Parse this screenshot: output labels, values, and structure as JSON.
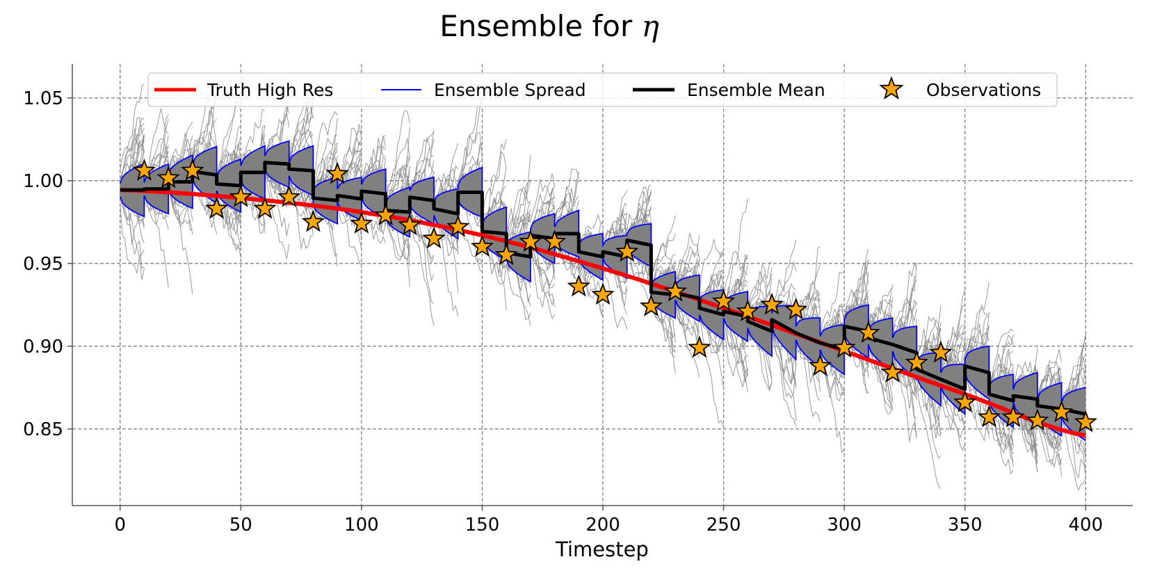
{
  "chart_data": {
    "type": "line",
    "title": "Ensemble for η",
    "title_prefix": "Ensemble for ",
    "title_symbol": "η",
    "xlabel": "Timestep",
    "ylabel": "",
    "xlim": [
      -19.8,
      419.5
    ],
    "ylim": [
      0.8037,
      1.0705
    ],
    "xticks": [
      0,
      50,
      100,
      150,
      200,
      250,
      300,
      350,
      400
    ],
    "yticks": [
      0.85,
      0.9,
      0.95,
      1.0,
      1.05
    ],
    "xtick_labels": [
      "0",
      "50",
      "100",
      "150",
      "200",
      "250",
      "300",
      "350",
      "400"
    ],
    "ytick_labels": [
      "0.85",
      "0.90",
      "0.95",
      "1.00",
      "1.05"
    ],
    "grid": true,
    "legend_placement": "top-center",
    "legend": [
      {
        "label": "Truth High Res",
        "color": "#ff0000",
        "kind": "thick-line"
      },
      {
        "label": "Ensemble Spread",
        "color": "#0000ff",
        "kind": "thin-line"
      },
      {
        "label": "Ensemble Mean",
        "color": "#000000",
        "kind": "thick-line"
      },
      {
        "label": "Observations",
        "color": "#ffa500",
        "kind": "star"
      }
    ],
    "colors": {
      "truth": "#ff0000",
      "spread": "#0000ff",
      "mean": "#000000",
      "members": "#808080",
      "observations": "#ffa500"
    },
    "truth": {
      "name": "Truth High Res",
      "x": [
        0,
        50,
        100,
        150,
        200,
        250,
        300,
        350,
        400
      ],
      "y": [
        0.9944,
        0.9895,
        0.981,
        0.967,
        0.947,
        0.923,
        0.897,
        0.871,
        0.846
      ]
    },
    "ensemble_mean": {
      "name": "Ensemble Mean",
      "points": [
        [
          0,
          0.9944
        ],
        [
          10,
          0.9944
        ],
        [
          10,
          0.995
        ],
        [
          20,
          0.995
        ],
        [
          20,
          0.9993
        ],
        [
          30,
          0.9993
        ],
        [
          30,
          1.0056
        ],
        [
          40,
          1.0035
        ],
        [
          40,
          0.998
        ],
        [
          50,
          0.997
        ],
        [
          50,
          1.005
        ],
        [
          60,
          1.005
        ],
        [
          60,
          1.011
        ],
        [
          70,
          1.01
        ],
        [
          70,
          1.007
        ],
        [
          80,
          1.006
        ],
        [
          80,
          0.9895
        ],
        [
          90,
          0.988
        ],
        [
          90,
          0.991
        ],
        [
          100,
          0.989
        ],
        [
          100,
          0.9937
        ],
        [
          110,
          0.992
        ],
        [
          110,
          0.982
        ],
        [
          120,
          0.981
        ],
        [
          120,
          0.99
        ],
        [
          130,
          0.988
        ],
        [
          130,
          0.983
        ],
        [
          140,
          0.98
        ],
        [
          140,
          0.993
        ],
        [
          150,
          0.993
        ],
        [
          150,
          0.9693
        ],
        [
          160,
          0.968
        ],
        [
          160,
          0.9565
        ],
        [
          170,
          0.954
        ],
        [
          170,
          0.967
        ],
        [
          180,
          0.965
        ],
        [
          180,
          0.968
        ],
        [
          190,
          0.968
        ],
        [
          190,
          0.957
        ],
        [
          200,
          0.954
        ],
        [
          200,
          0.957
        ],
        [
          210,
          0.954
        ],
        [
          210,
          0.964
        ],
        [
          220,
          0.961
        ],
        [
          220,
          0.9326
        ],
        [
          230,
          0.931
        ],
        [
          230,
          0.932
        ],
        [
          240,
          0.929
        ],
        [
          240,
          0.923
        ],
        [
          250,
          0.919
        ],
        [
          250,
          0.921
        ],
        [
          260,
          0.918
        ],
        [
          260,
          0.915
        ],
        [
          270,
          0.909
        ],
        [
          270,
          0.916
        ],
        [
          280,
          0.908
        ],
        [
          280,
          0.908
        ],
        [
          290,
          0.902
        ],
        [
          290,
          0.902
        ],
        [
          300,
          0.898
        ],
        [
          300,
          0.912
        ],
        [
          310,
          0.909
        ],
        [
          310,
          0.905
        ],
        [
          320,
          0.901
        ],
        [
          320,
          0.901
        ],
        [
          330,
          0.896
        ],
        [
          330,
          0.886
        ],
        [
          340,
          0.88
        ],
        [
          340,
          0.88
        ],
        [
          350,
          0.874
        ],
        [
          350,
          0.888
        ],
        [
          360,
          0.884
        ],
        [
          360,
          0.871
        ],
        [
          370,
          0.867
        ],
        [
          370,
          0.87
        ],
        [
          380,
          0.868
        ],
        [
          380,
          0.864
        ],
        [
          390,
          0.862
        ],
        [
          390,
          0.862
        ],
        [
          400,
          0.859
        ]
      ]
    },
    "ensemble_spread": {
      "name": "Ensemble Spread",
      "cycle_length": 10,
      "analysis_std": 0.004,
      "forecast_std": [
        0.016,
        0.015,
        0.016,
        0.017,
        0.016,
        0.016,
        0.014,
        0.015,
        0.014,
        0.013,
        0.015,
        0.015,
        0.014,
        0.015,
        0.015,
        0.016,
        0.015,
        0.015,
        0.014,
        0.014,
        0.013,
        0.013,
        0.014,
        0.014,
        0.015,
        0.015,
        0.015,
        0.016,
        0.015,
        0.015,
        0.016,
        0.016,
        0.016,
        0.016,
        0.015,
        0.016,
        0.016,
        0.016,
        0.016,
        0.016
      ]
    },
    "observations": {
      "name": "Observations",
      "x": [
        10,
        20,
        30,
        40,
        50,
        60,
        70,
        80,
        90,
        100,
        110,
        120,
        130,
        140,
        150,
        160,
        170,
        180,
        190,
        200,
        210,
        220,
        230,
        240,
        250,
        260,
        270,
        280,
        290,
        300,
        310,
        320,
        330,
        340,
        350,
        360,
        370,
        380,
        390,
        400
      ],
      "y": [
        1.006,
        1.0015,
        1.006,
        0.983,
        0.99,
        0.983,
        0.99,
        0.975,
        1.004,
        0.974,
        0.979,
        0.973,
        0.965,
        0.972,
        0.96,
        0.955,
        0.963,
        0.963,
        0.936,
        0.931,
        0.957,
        0.924,
        0.933,
        0.899,
        0.927,
        0.921,
        0.925,
        0.922,
        0.888,
        0.899,
        0.908,
        0.884,
        0.89,
        0.896,
        0.866,
        0.857,
        0.857,
        0.855,
        0.86,
        0.854
      ]
    }
  }
}
